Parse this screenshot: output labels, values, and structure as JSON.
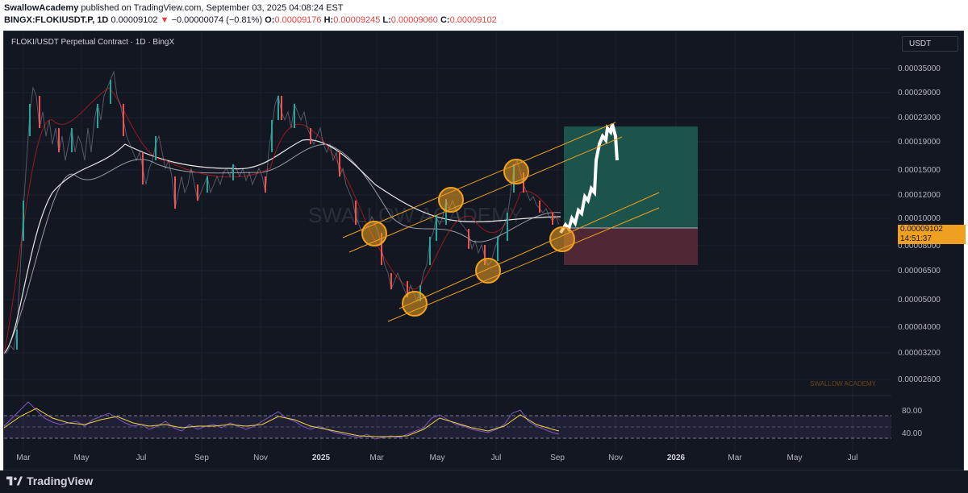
{
  "header": {
    "author": "SwallowAcademy",
    "published_text": "published on TradingView.com, September 03, 2025 04:08:24 EST",
    "symbol": "BINGX:FLOKIUSDT.P, 1D",
    "last": "0.00009102",
    "change_arrow": "▼",
    "change": "−0.00000074 (−0.81%)",
    "o_label": "O:",
    "o_value": "0.00009176",
    "h_label": "H:",
    "h_value": "0.00009245",
    "l_label": "L:",
    "l_value": "0.00009060",
    "c_label": "C:",
    "c_value": "0.00009102"
  },
  "chart": {
    "legend": "FLOKI/USDT Perpetual Contract · 1D · BingX",
    "currency_button": "USDT",
    "watermark_center": "SWALLOW ACADEMY",
    "watermark_corner": "SWALLOW ACADEMY",
    "price_axis": [
      "0.00035000",
      "0.00029000",
      "0.00023000",
      "0.00019000",
      "0.00015000",
      "0.00012000",
      "0.00010000",
      "0.00008000",
      "0.00006500",
      "0.00005000",
      "0.00004000",
      "0.00003200",
      "0.00002600"
    ],
    "current_price": "0.00009102",
    "countdown": "14:51:37",
    "time_axis": [
      "Mar",
      "May",
      "Jul",
      "Sep",
      "Nov",
      "2025",
      "Mar",
      "May",
      "Jul",
      "Sep",
      "Nov",
      "2026",
      "Mar",
      "May",
      "Jul"
    ],
    "rsi_axis": [
      "80.00",
      "40.00"
    ]
  },
  "footer": {
    "brand": "TradingView"
  },
  "colors": {
    "bg": "#131722",
    "up": "#26a69a",
    "down": "#ef5350",
    "channel": "#f0a020",
    "rsi": "#7e57c2",
    "rsi_ma": "#f5d63d"
  }
}
